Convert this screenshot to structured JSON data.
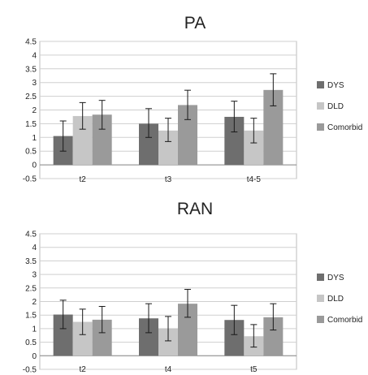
{
  "chart_data": [
    {
      "type": "bar",
      "title": "PA",
      "xlabel": "",
      "ylabel": "",
      "categories": [
        "t2",
        "t3",
        "t4-5"
      ],
      "ylim": [
        -0.5,
        4.5
      ],
      "yticks": [
        -0.5,
        0,
        0.5,
        1,
        1.5,
        2,
        2.5,
        3,
        3.5,
        4,
        4.5
      ],
      "ytick_labels": [
        "-0.5",
        "0",
        "0.5",
        "1",
        "1.5",
        "2",
        "2.5",
        "3",
        "3.5",
        "4",
        "4.5"
      ],
      "grid": true,
      "legend_position": "right",
      "error_bars": true,
      "series": [
        {
          "name": "DYS",
          "color": "#6e6e6e",
          "values": [
            1.05,
            1.5,
            1.75
          ],
          "err_low": [
            0.5,
            1.0,
            1.2
          ],
          "err_high": [
            1.6,
            2.05,
            2.32
          ]
        },
        {
          "name": "DLD",
          "color": "#c6c6c6",
          "values": [
            1.78,
            1.25,
            1.25
          ],
          "err_low": [
            1.3,
            0.85,
            0.8
          ],
          "err_high": [
            2.27,
            1.7,
            1.7
          ]
        },
        {
          "name": "Comorbid",
          "color": "#9a9a9a",
          "values": [
            1.83,
            2.18,
            2.73
          ],
          "err_low": [
            1.3,
            1.65,
            2.15
          ],
          "err_high": [
            2.35,
            2.72,
            3.32
          ]
        }
      ]
    },
    {
      "type": "bar",
      "title": "RAN",
      "xlabel": "",
      "ylabel": "",
      "categories": [
        "t2",
        "t4",
        "t5"
      ],
      "ylim": [
        -0.5,
        4.5
      ],
      "yticks": [
        -0.5,
        0,
        0.5,
        1,
        1.5,
        2,
        2.5,
        3,
        3.5,
        4,
        4.5
      ],
      "ytick_labels": [
        "-0.5",
        "0",
        "0.5",
        "1",
        "1.5",
        "2",
        "2.5",
        "3",
        "3.5",
        "4",
        "4.5"
      ],
      "grid": true,
      "legend_position": "right",
      "error_bars": true,
      "series": [
        {
          "name": "DYS",
          "color": "#6e6e6e",
          "values": [
            1.52,
            1.38,
            1.32
          ],
          "err_low": [
            1.0,
            0.85,
            0.78
          ],
          "err_high": [
            2.05,
            1.92,
            1.86
          ]
        },
        {
          "name": "DLD",
          "color": "#c6c6c6",
          "values": [
            1.25,
            1.0,
            0.72
          ],
          "err_low": [
            0.78,
            0.55,
            0.32
          ],
          "err_high": [
            1.72,
            1.45,
            1.15
          ]
        },
        {
          "name": "Comorbid",
          "color": "#9a9a9a",
          "values": [
            1.33,
            1.92,
            1.42
          ],
          "err_low": [
            0.85,
            1.42,
            0.95
          ],
          "err_high": [
            1.82,
            2.45,
            1.92
          ]
        }
      ]
    }
  ]
}
